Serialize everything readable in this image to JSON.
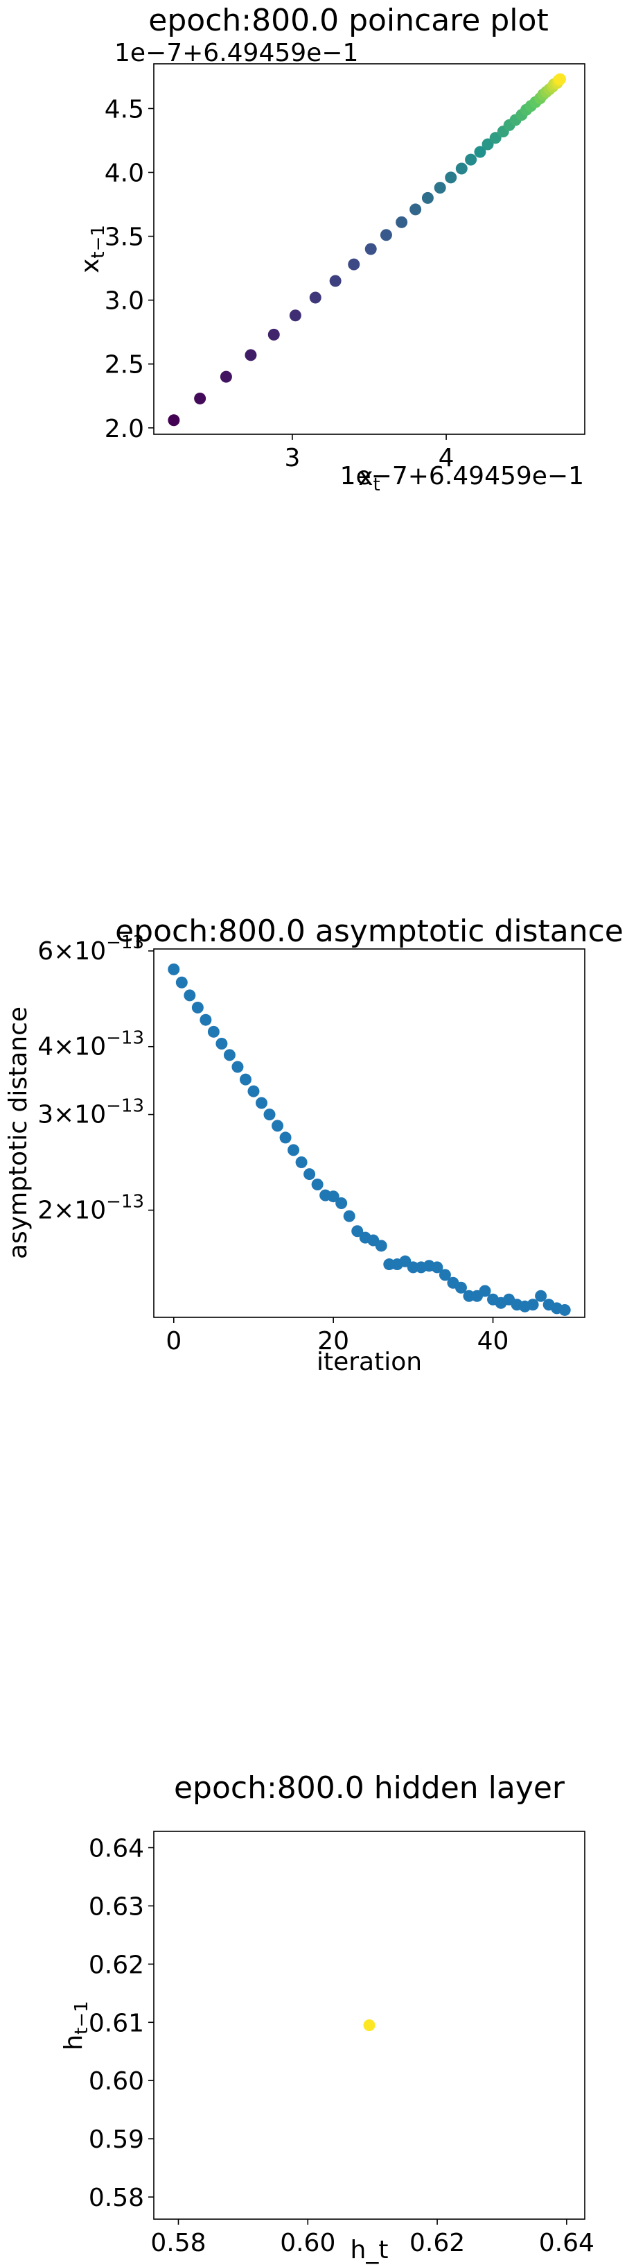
{
  "chart_data": [
    {
      "type": "scatter",
      "title": "epoch:800.0 poincare plot",
      "xlabel": "x_t",
      "ylabel": "x_{t-1}",
      "x_offset_text": "1e−7+6.49459e−1",
      "y_offset_text": "1e−7+6.49459e−1",
      "x_ticks": [
        "3",
        "4"
      ],
      "y_ticks": [
        "2.0",
        "2.5",
        "3.0",
        "3.5",
        "4.0",
        "4.5"
      ],
      "xlim": [
        2.1,
        4.9
      ],
      "ylim": [
        1.95,
        4.85
      ],
      "colormap": "viridis",
      "grid": false,
      "x": [
        2.23,
        2.4,
        2.57,
        2.73,
        2.88,
        3.02,
        3.15,
        3.28,
        3.4,
        3.51,
        3.61,
        3.71,
        3.8,
        3.88,
        3.96,
        4.03,
        4.1,
        4.16,
        4.22,
        4.27,
        4.32,
        4.37,
        4.41,
        4.45,
        4.49,
        4.52,
        4.55,
        4.58,
        4.61,
        4.63,
        4.65,
        4.67,
        4.69,
        4.7,
        4.72,
        4.73,
        4.74
      ],
      "y": [
        2.06,
        2.23,
        2.4,
        2.57,
        2.73,
        2.88,
        3.02,
        3.15,
        3.28,
        3.4,
        3.51,
        3.61,
        3.71,
        3.8,
        3.88,
        3.96,
        4.03,
        4.1,
        4.16,
        4.22,
        4.27,
        4.32,
        4.37,
        4.41,
        4.45,
        4.49,
        4.52,
        4.55,
        4.58,
        4.61,
        4.63,
        4.65,
        4.67,
        4.69,
        4.7,
        4.72,
        4.73
      ]
    },
    {
      "type": "scatter",
      "title": "epoch:800.0 asymptotic distance",
      "xlabel": "iteration",
      "ylabel": "asymptotic distance",
      "yscale": "log",
      "x_ticks": [
        "0",
        "20",
        "40"
      ],
      "y_ticks": [
        {
          "mantissa": "6×10",
          "exp": "−13",
          "value": 6e-13
        },
        {
          "mantissa": "4×10",
          "exp": "−13",
          "value": 4e-13
        },
        {
          "mantissa": "3×10",
          "exp": "−13",
          "value": 3e-13
        },
        {
          "mantissa": "2×10",
          "exp": "−13",
          "value": 2e-13
        }
      ],
      "xlim": [
        -2.5,
        51.5
      ],
      "ylim": [
        1.27e-13,
        6.05e-13
      ],
      "color": "#1f77b4",
      "grid": false,
      "x": [
        0,
        1,
        2,
        3,
        4,
        5,
        6,
        7,
        8,
        9,
        10,
        11,
        12,
        13,
        14,
        15,
        16,
        17,
        18,
        19,
        20,
        21,
        22,
        23,
        24,
        25,
        26,
        27,
        28,
        29,
        30,
        31,
        32,
        33,
        34,
        35,
        36,
        37,
        38,
        39,
        40,
        41,
        42,
        43,
        44,
        45,
        46,
        47,
        48,
        49
      ],
      "y": [
        5.55e-13,
        5.25e-13,
        4.97e-13,
        4.72e-13,
        4.48e-13,
        4.26e-13,
        4.05e-13,
        3.86e-13,
        3.67e-13,
        3.48e-13,
        3.31e-13,
        3.15e-13,
        3e-13,
        2.86e-13,
        2.72e-13,
        2.58e-13,
        2.45e-13,
        2.33e-13,
        2.23e-13,
        2.13e-13,
        2.12e-13,
        2.06e-13,
        1.95e-13,
        1.83e-13,
        1.78e-13,
        1.76e-13,
        1.72e-13,
        1.59e-13,
        1.59e-13,
        1.61e-13,
        1.57e-13,
        1.57e-13,
        1.58e-13,
        1.57e-13,
        1.52e-13,
        1.47e-13,
        1.44e-13,
        1.39e-13,
        1.39e-13,
        1.42e-13,
        1.37e-13,
        1.35e-13,
        1.37e-13,
        1.34e-13,
        1.33e-13,
        1.34e-13,
        1.39e-13,
        1.34e-13,
        1.32e-13,
        1.31e-13
      ]
    },
    {
      "type": "scatter",
      "title": "epoch:800.0 hidden layer",
      "xlabel": "h_t",
      "ylabel": "h_{t-1}",
      "x_ticks": [
        "0.58",
        "0.60",
        "0.62",
        "0.64"
      ],
      "y_ticks": [
        "0.58",
        "0.59",
        "0.60",
        "0.61",
        "0.62",
        "0.63",
        "0.64"
      ],
      "xlim": [
        0.5762,
        0.6428
      ],
      "ylim": [
        0.5762,
        0.6428
      ],
      "color": "#fde725",
      "grid": false,
      "x": [
        0.6095
      ],
      "y": [
        0.6095
      ]
    }
  ]
}
